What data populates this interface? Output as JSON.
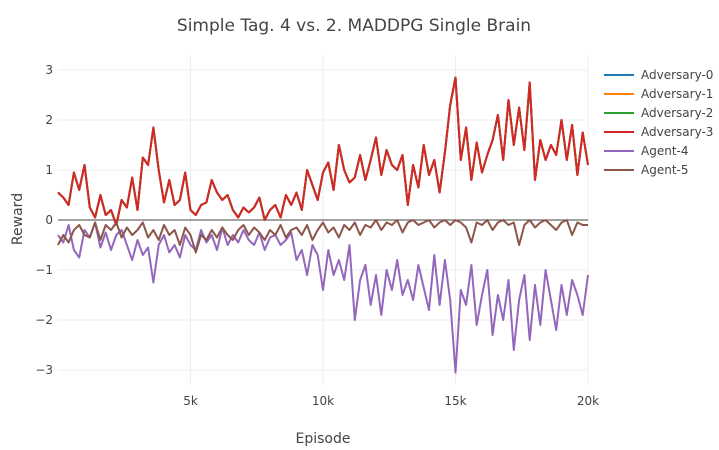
{
  "chart_data": {
    "type": "line",
    "title": "Simple Tag. 4 vs. 2. MADDPG Single Brain",
    "xlabel": "Episode",
    "ylabel": "Reward",
    "xlim": [
      0,
      20000
    ],
    "ylim": [
      -3.3,
      3.3
    ],
    "xticks": [
      5000,
      10000,
      15000,
      20000
    ],
    "xtick_labels": [
      "5k",
      "10k",
      "15k",
      "20k"
    ],
    "yticks": [
      -3,
      -2,
      -1,
      0,
      1,
      2,
      3
    ],
    "ytick_labels": [
      "−3",
      "−2",
      "−1",
      "0",
      "1",
      "2",
      "3"
    ],
    "grid": true,
    "legend_position": "right",
    "x": [
      0,
      200,
      400,
      600,
      800,
      1000,
      1200,
      1400,
      1600,
      1800,
      2000,
      2200,
      2400,
      2600,
      2800,
      3000,
      3200,
      3400,
      3600,
      3800,
      4000,
      4200,
      4400,
      4600,
      4800,
      5000,
      5200,
      5400,
      5600,
      5800,
      6000,
      6200,
      6400,
      6600,
      6800,
      7000,
      7200,
      7400,
      7600,
      7800,
      8000,
      8200,
      8400,
      8600,
      8800,
      9000,
      9200,
      9400,
      9600,
      9800,
      10000,
      10200,
      10400,
      10600,
      10800,
      11000,
      11200,
      11400,
      11600,
      11800,
      12000,
      12200,
      12400,
      12600,
      12800,
      13000,
      13200,
      13400,
      13600,
      13800,
      14000,
      14200,
      14400,
      14600,
      14800,
      15000,
      15200,
      15400,
      15600,
      15800,
      16000,
      16200,
      16400,
      16600,
      16800,
      17000,
      17200,
      17400,
      17600,
      17800,
      18000,
      18200,
      18400,
      18600,
      18800,
      19000,
      19200,
      19400,
      19600,
      19800,
      20000
    ],
    "series": [
      {
        "name": "Adversary-0",
        "color": "#1f77b4",
        "values": [
          0.55,
          0.45,
          0.3,
          0.95,
          0.6,
          1.1,
          0.25,
          0.05,
          0.5,
          0.1,
          0.2,
          -0.1,
          0.4,
          0.25,
          0.85,
          0.2,
          1.25,
          1.1,
          1.85,
          1.0,
          0.35,
          0.8,
          0.3,
          0.4,
          0.95,
          0.2,
          0.1,
          0.3,
          0.35,
          0.8,
          0.55,
          0.4,
          0.5,
          0.2,
          0.05,
          0.25,
          0.15,
          0.25,
          0.45,
          0.0,
          0.2,
          0.3,
          0.05,
          0.5,
          0.3,
          0.55,
          0.2,
          1.0,
          0.7,
          0.4,
          0.95,
          1.15,
          0.6,
          1.5,
          1.0,
          0.75,
          0.85,
          1.3,
          0.8,
          1.2,
          1.65,
          0.9,
          1.4,
          1.1,
          1.0,
          1.3,
          0.3,
          1.1,
          0.65,
          1.5,
          0.9,
          1.2,
          0.55,
          1.35,
          2.3,
          2.85,
          1.2,
          1.85,
          0.8,
          1.55,
          0.95,
          1.3,
          1.6,
          2.1,
          1.2,
          2.4,
          1.5,
          2.25,
          1.4,
          2.75,
          0.8,
          1.6,
          1.2,
          1.5,
          1.3,
          2.0,
          1.2,
          1.9,
          0.9,
          1.75,
          1.1
        ]
      },
      {
        "name": "Adversary-1",
        "color": "#ff7f0e",
        "values": [
          0.55,
          0.45,
          0.3,
          0.95,
          0.6,
          1.1,
          0.25,
          0.05,
          0.5,
          0.1,
          0.2,
          -0.1,
          0.4,
          0.25,
          0.85,
          0.2,
          1.25,
          1.1,
          1.85,
          1.0,
          0.35,
          0.8,
          0.3,
          0.4,
          0.95,
          0.2,
          0.1,
          0.3,
          0.35,
          0.8,
          0.55,
          0.4,
          0.5,
          0.2,
          0.05,
          0.25,
          0.15,
          0.25,
          0.45,
          0.0,
          0.2,
          0.3,
          0.05,
          0.5,
          0.3,
          0.55,
          0.2,
          1.0,
          0.7,
          0.4,
          0.95,
          1.15,
          0.6,
          1.5,
          1.0,
          0.75,
          0.85,
          1.3,
          0.8,
          1.2,
          1.65,
          0.9,
          1.4,
          1.1,
          1.0,
          1.3,
          0.3,
          1.1,
          0.65,
          1.5,
          0.9,
          1.2,
          0.55,
          1.35,
          2.3,
          2.85,
          1.2,
          1.85,
          0.8,
          1.55,
          0.95,
          1.3,
          1.6,
          2.1,
          1.2,
          2.4,
          1.5,
          2.25,
          1.4,
          2.75,
          0.8,
          1.6,
          1.2,
          1.5,
          1.3,
          2.0,
          1.2,
          1.9,
          0.9,
          1.75,
          1.1
        ]
      },
      {
        "name": "Adversary-2",
        "color": "#2ca02c",
        "values": [
          0.55,
          0.45,
          0.3,
          0.95,
          0.6,
          1.1,
          0.25,
          0.05,
          0.5,
          0.1,
          0.2,
          -0.1,
          0.4,
          0.25,
          0.85,
          0.2,
          1.25,
          1.1,
          1.85,
          1.0,
          0.35,
          0.8,
          0.3,
          0.4,
          0.95,
          0.2,
          0.1,
          0.3,
          0.35,
          0.8,
          0.55,
          0.4,
          0.5,
          0.2,
          0.05,
          0.25,
          0.15,
          0.25,
          0.45,
          0.0,
          0.2,
          0.3,
          0.05,
          0.5,
          0.3,
          0.55,
          0.2,
          1.0,
          0.7,
          0.4,
          0.95,
          1.15,
          0.6,
          1.5,
          1.0,
          0.75,
          0.85,
          1.3,
          0.8,
          1.2,
          1.65,
          0.9,
          1.4,
          1.1,
          1.0,
          1.3,
          0.3,
          1.1,
          0.65,
          1.5,
          0.9,
          1.2,
          0.55,
          1.35,
          2.3,
          2.85,
          1.2,
          1.85,
          0.8,
          1.55,
          0.95,
          1.3,
          1.6,
          2.1,
          1.2,
          2.4,
          1.5,
          2.25,
          1.4,
          2.75,
          0.8,
          1.6,
          1.2,
          1.5,
          1.3,
          2.0,
          1.2,
          1.9,
          0.9,
          1.75,
          1.1
        ]
      },
      {
        "name": "Adversary-3",
        "color": "#d62728",
        "values": [
          0.55,
          0.45,
          0.3,
          0.95,
          0.6,
          1.1,
          0.25,
          0.05,
          0.5,
          0.1,
          0.2,
          -0.1,
          0.4,
          0.25,
          0.85,
          0.2,
          1.25,
          1.1,
          1.85,
          1.0,
          0.35,
          0.8,
          0.3,
          0.4,
          0.95,
          0.2,
          0.1,
          0.3,
          0.35,
          0.8,
          0.55,
          0.4,
          0.5,
          0.2,
          0.05,
          0.25,
          0.15,
          0.25,
          0.45,
          0.0,
          0.2,
          0.3,
          0.05,
          0.5,
          0.3,
          0.55,
          0.2,
          1.0,
          0.7,
          0.4,
          0.95,
          1.15,
          0.6,
          1.5,
          1.0,
          0.75,
          0.85,
          1.3,
          0.8,
          1.2,
          1.65,
          0.9,
          1.4,
          1.1,
          1.0,
          1.3,
          0.3,
          1.1,
          0.65,
          1.5,
          0.9,
          1.2,
          0.55,
          1.35,
          2.3,
          2.85,
          1.2,
          1.85,
          0.8,
          1.55,
          0.95,
          1.3,
          1.6,
          2.1,
          1.2,
          2.4,
          1.5,
          2.25,
          1.4,
          2.75,
          0.8,
          1.6,
          1.2,
          1.5,
          1.3,
          2.0,
          1.2,
          1.9,
          0.9,
          1.75,
          1.1
        ]
      },
      {
        "name": "Agent-4",
        "color": "#9467bd",
        "values": [
          -0.3,
          -0.45,
          -0.1,
          -0.6,
          -0.75,
          -0.2,
          -0.35,
          -0.05,
          -0.55,
          -0.25,
          -0.6,
          -0.3,
          -0.2,
          -0.5,
          -0.8,
          -0.4,
          -0.7,
          -0.55,
          -1.25,
          -0.5,
          -0.3,
          -0.65,
          -0.5,
          -0.75,
          -0.3,
          -0.5,
          -0.6,
          -0.2,
          -0.45,
          -0.3,
          -0.6,
          -0.15,
          -0.5,
          -0.3,
          -0.45,
          -0.2,
          -0.4,
          -0.5,
          -0.25,
          -0.6,
          -0.35,
          -0.3,
          -0.5,
          -0.4,
          -0.25,
          -0.8,
          -0.6,
          -1.1,
          -0.5,
          -0.7,
          -1.4,
          -0.6,
          -1.1,
          -0.8,
          -1.2,
          -0.5,
          -2.0,
          -1.2,
          -0.9,
          -1.7,
          -1.1,
          -1.9,
          -1.0,
          -1.4,
          -0.8,
          -1.5,
          -1.2,
          -1.6,
          -0.9,
          -1.35,
          -1.8,
          -0.7,
          -1.7,
          -0.8,
          -1.6,
          -3.05,
          -1.4,
          -1.7,
          -0.9,
          -2.1,
          -1.5,
          -1.0,
          -2.3,
          -1.5,
          -2.0,
          -1.2,
          -2.6,
          -1.6,
          -1.1,
          -2.4,
          -1.3,
          -2.1,
          -1.0,
          -1.6,
          -2.2,
          -1.3,
          -1.9,
          -1.2,
          -1.5,
          -1.9,
          -1.1
        ]
      },
      {
        "name": "Agent-5",
        "color": "#8c564b",
        "values": [
          -0.5,
          -0.3,
          -0.45,
          -0.2,
          -0.1,
          -0.3,
          -0.35,
          -0.05,
          -0.4,
          -0.1,
          -0.2,
          -0.05,
          -0.35,
          -0.15,
          -0.3,
          -0.2,
          -0.05,
          -0.35,
          -0.2,
          -0.4,
          -0.1,
          -0.3,
          -0.2,
          -0.5,
          -0.15,
          -0.3,
          -0.65,
          -0.3,
          -0.4,
          -0.2,
          -0.35,
          -0.15,
          -0.3,
          -0.4,
          -0.2,
          -0.1,
          -0.3,
          -0.15,
          -0.25,
          -0.4,
          -0.2,
          -0.3,
          -0.1,
          -0.35,
          -0.2,
          -0.15,
          -0.3,
          -0.1,
          -0.4,
          -0.2,
          -0.05,
          -0.25,
          -0.15,
          -0.35,
          -0.1,
          -0.2,
          -0.05,
          -0.3,
          -0.1,
          -0.15,
          0.0,
          -0.2,
          -0.05,
          -0.1,
          0.0,
          -0.25,
          -0.05,
          0.0,
          -0.1,
          -0.05,
          0.0,
          -0.15,
          -0.05,
          0.0,
          -0.1,
          0.0,
          -0.05,
          -0.15,
          -0.45,
          -0.05,
          -0.1,
          0.0,
          -0.2,
          -0.05,
          0.0,
          -0.1,
          -0.05,
          -0.5,
          -0.1,
          0.0,
          -0.15,
          -0.05,
          0.0,
          -0.1,
          -0.2,
          -0.05,
          0.0,
          -0.3,
          -0.05,
          -0.1,
          -0.1
        ]
      }
    ]
  }
}
